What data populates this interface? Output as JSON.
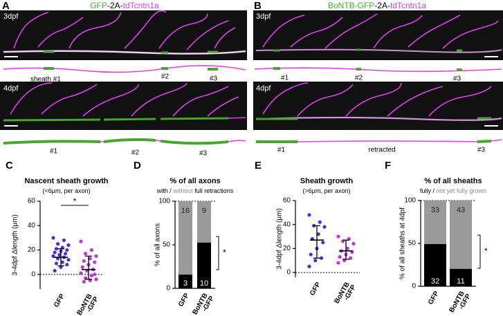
{
  "panels": {
    "A": {
      "label": "A",
      "title": [
        "GFP",
        "-2A-",
        "tdTcntn1a"
      ],
      "images": [
        {
          "stage": "3dpf",
          "sheaths": [
            "sheath #1",
            "#2",
            "#3"
          ]
        },
        {
          "stage": "4dpf",
          "sheaths": [
            "#1",
            "#2",
            "#3"
          ]
        }
      ]
    },
    "B": {
      "label": "B",
      "title": [
        "BoNTB-GFP",
        "-2A-",
        "tdTcntn1a"
      ],
      "images": [
        {
          "stage": "3dpf",
          "sheaths": [
            "#1",
            "#2",
            "#3"
          ]
        },
        {
          "stage": "4dpf",
          "sheaths": [
            "#1",
            "retracted",
            "#3"
          ]
        }
      ]
    }
  },
  "chart_data": [
    {
      "type": "dot",
      "panel": "C",
      "title": "Nascent sheath growth",
      "subtitle": [
        "(<6µm, per axon)"
      ],
      "subtitle_colors": [
        "#000000"
      ],
      "y_label": "3-4dpf Δlength (µm)",
      "categories": [
        [
          "GFP"
        ],
        [
          "BoNTB",
          "-GFP"
        ]
      ],
      "groups": [
        {
          "color": "#4a2fd6",
          "values": [
            30,
            28,
            25,
            24,
            22,
            21,
            20,
            19,
            18,
            17,
            16,
            15,
            14,
            13,
            12,
            10,
            9,
            8,
            6,
            3
          ],
          "center": 14,
          "low": 7,
          "high": 21
        },
        {
          "color": "#c233d8",
          "values": [
            27,
            20,
            17,
            15,
            13,
            11,
            10,
            8,
            6,
            4,
            3,
            1,
            -1,
            -3,
            -4,
            -5,
            -6,
            0
          ],
          "center": 4,
          "low": -4,
          "high": 15
        }
      ],
      "ylim": [
        -12,
        60
      ],
      "yticks": [
        0,
        20,
        40,
        60
      ],
      "ref_line": 0,
      "significance": "*"
    },
    {
      "type": "stacked_bar",
      "panel": "D",
      "title": "% of all axons",
      "subtitle": [
        "with",
        " / ",
        "without",
        "  full retractions"
      ],
      "subtitle_colors": [
        "#000000",
        "#000000",
        "#8c8c8c",
        "#000000"
      ],
      "y_label": "% of all axons",
      "categories": [
        [
          "GFP"
        ],
        [
          "BoNTB",
          "-GFP"
        ]
      ],
      "series": [
        {
          "color": "#000000",
          "values": [
            15.8,
            52.6
          ],
          "counts": [
            3,
            10
          ]
        },
        {
          "color": "#9a9a9a",
          "values": [
            84.2,
            47.4
          ],
          "counts": [
            16,
            9
          ]
        }
      ],
      "ylim": [
        0,
        100
      ],
      "yticks": [
        0,
        50,
        100
      ],
      "ref_line": 100,
      "significance": "*"
    },
    {
      "type": "dot",
      "panel": "E",
      "title": "Sheath growth",
      "subtitle": [
        "(>6µm, per axon)"
      ],
      "subtitle_colors": [
        "#000000"
      ],
      "y_label": "3-4dpf Δlength (µm)",
      "categories": [
        [
          "GFP"
        ],
        [
          "BoNTB",
          "-GFP"
        ]
      ],
      "groups": [
        {
          "color": "#4a2fd6",
          "values": [
            48,
            42,
            39,
            38,
            32,
            28,
            25,
            20,
            15,
            12,
            10,
            5
          ],
          "center": 27,
          "low": 12,
          "high": 39
        },
        {
          "color": "#c233d8",
          "values": [
            30,
            28,
            26,
            24,
            20,
            18,
            17,
            15,
            13,
            12,
            10,
            8
          ],
          "center": 18,
          "low": 11,
          "high": 27
        }
      ],
      "ylim": [
        -4,
        60
      ],
      "yticks": [
        0,
        20,
        40,
        60
      ],
      "ref_line": 0
    },
    {
      "type": "stacked_bar",
      "panel": "F",
      "title": "% of all sheaths",
      "subtitle": [
        "fully",
        " / ",
        "not yet fully grown"
      ],
      "subtitle_colors": [
        "#000000",
        "#000000",
        "#8c8c8c"
      ],
      "y_label": "% of all sheaths at 4dpf",
      "categories": [
        [
          "GFP"
        ],
        [
          "BoNTB",
          "-GFP"
        ]
      ],
      "series": [
        {
          "color": "#000000",
          "values": [
            49.2,
            20.4
          ],
          "counts": [
            32,
            11
          ]
        },
        {
          "color": "#9a9a9a",
          "values": [
            50.8,
            79.6
          ],
          "counts": [
            33,
            43
          ]
        }
      ],
      "ylim": [
        0,
        100
      ],
      "yticks": [
        0,
        50,
        100
      ],
      "ref_line": 100,
      "significance": "*"
    }
  ]
}
